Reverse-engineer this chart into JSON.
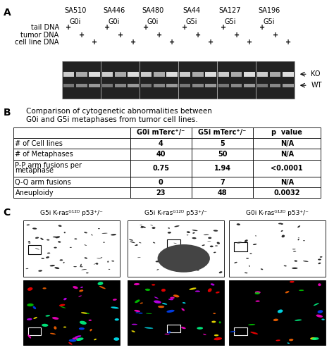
{
  "panel_A": {
    "label": "A",
    "gel_labels_top": [
      "SA510\nG0i",
      "SA446\nG0i",
      "SA480\nG0i",
      "SA44\nG5i",
      "SA127\nG5i",
      "SA196\nG5i"
    ],
    "row_labels": [
      "tail DNA",
      "tumor DNA",
      "cell line DNA"
    ],
    "arrow_labels": [
      "KO",
      "WT"
    ],
    "gel_bg": "#222222"
  },
  "panel_B": {
    "label": "B",
    "title_line1": "Comparison of cytogenetic abnormalities between",
    "title_line2": "G0i and G5i metaphases from tumor cell lines.",
    "col_headers": [
      "",
      "G0i mTerc⁺/⁻",
      "G5i mTerc⁺/⁻",
      "p  value"
    ],
    "rows": [
      [
        "# of Cell lines",
        "4",
        "5",
        "N/A"
      ],
      [
        "# of Metaphases",
        "40",
        "50",
        "N/A"
      ],
      [
        "P-P arm fusions per\nmetaphase",
        "0.75",
        "1.94",
        "<0.0001"
      ],
      [
        "Q-Q arm fusions",
        "0",
        "7",
        "N/A"
      ],
      [
        "Aneuploidy",
        "23",
        "48",
        "0.0032"
      ]
    ]
  },
  "panel_C": {
    "label": "C",
    "titles": [
      "G5i K-rasᴳ¹²ᴰ p53⁺/⁻",
      "G5i K-rasᴳ¹²ᴰ p53⁺/⁻",
      "G0i K-rasᴳ¹²ᴰ p53⁺/⁻"
    ]
  },
  "bg_color": "#ffffff",
  "text_color": "#000000",
  "font_size": 7
}
